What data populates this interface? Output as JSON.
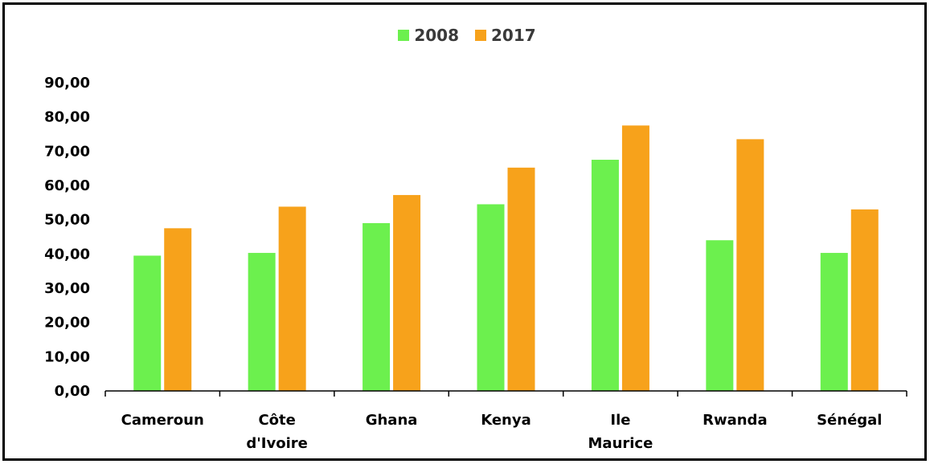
{
  "chart_data": {
    "type": "bar",
    "categories": [
      "Cameroun",
      "Côte d'Ivoire",
      "Ghana",
      "Kenya",
      "Ile Maurice",
      "Rwanda",
      "Sénégal"
    ],
    "category_lines": [
      [
        "Cameroun"
      ],
      [
        "Côte",
        "d'Ivoire"
      ],
      [
        "Ghana"
      ],
      [
        "Kenya"
      ],
      [
        "Ile",
        "Maurice"
      ],
      [
        "Rwanda"
      ],
      [
        "Sénégal"
      ]
    ],
    "series": [
      {
        "name": "2008",
        "color": "#6cf04e",
        "values": [
          39.5,
          40.3,
          49.0,
          54.5,
          67.5,
          44.0,
          40.3
        ]
      },
      {
        "name": "2017",
        "color": "#f7a21b",
        "values": [
          47.5,
          53.8,
          57.2,
          65.2,
          77.5,
          73.5,
          53.0
        ]
      }
    ],
    "yticks": [
      "0,00",
      "10,00",
      "20,00",
      "30,00",
      "40,00",
      "50,00",
      "60,00",
      "70,00",
      "80,00",
      "90,00"
    ],
    "ylim": [
      0,
      90
    ],
    "legend_position": "top-center",
    "grid": false
  }
}
